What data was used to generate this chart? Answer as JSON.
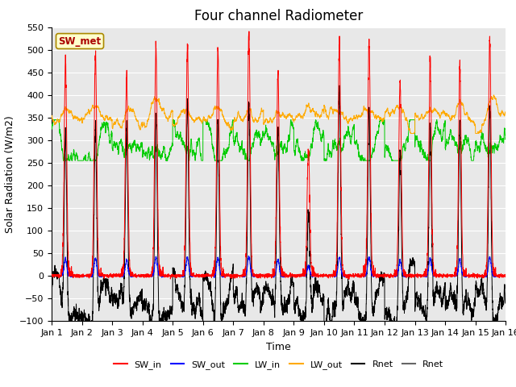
{
  "title": "Four channel Radiometer",
  "xlabel": "Time",
  "ylabel": "Solar Radiation (W/m2)",
  "ylim": [
    -100,
    550
  ],
  "yticks": [
    -100,
    -50,
    0,
    50,
    100,
    150,
    200,
    250,
    300,
    350,
    400,
    450,
    500,
    550
  ],
  "xtick_labels": [
    "Jan 1",
    "Jan 2",
    "Jan 3",
    "Jan 4",
    "Jan 5",
    "Jan 6",
    "Jan 7",
    "Jan 8",
    "Jan 9",
    "Jan 10",
    "Jan 11",
    "Jan 12",
    "Jan 13",
    "Jan 14",
    "Jan 15",
    "Jan 16"
  ],
  "n_days": 15,
  "pts_per_day": 288,
  "legend_entries": [
    "SW_in",
    "SW_out",
    "LW_in",
    "LW_out",
    "Rnet",
    "Rnet"
  ],
  "legend_colors": [
    "#ff0000",
    "#0000ff",
    "#00cc00",
    "#ffaa00",
    "#000000",
    "#666666"
  ],
  "sw_met_label": "SW_met",
  "sw_met_bg": "#ffffcc",
  "sw_met_border": "#aa8800",
  "sw_met_text_color": "#aa0000",
  "bg_color": "#e8e8e8",
  "title_fontsize": 12,
  "label_fontsize": 9,
  "tick_fontsize": 8
}
